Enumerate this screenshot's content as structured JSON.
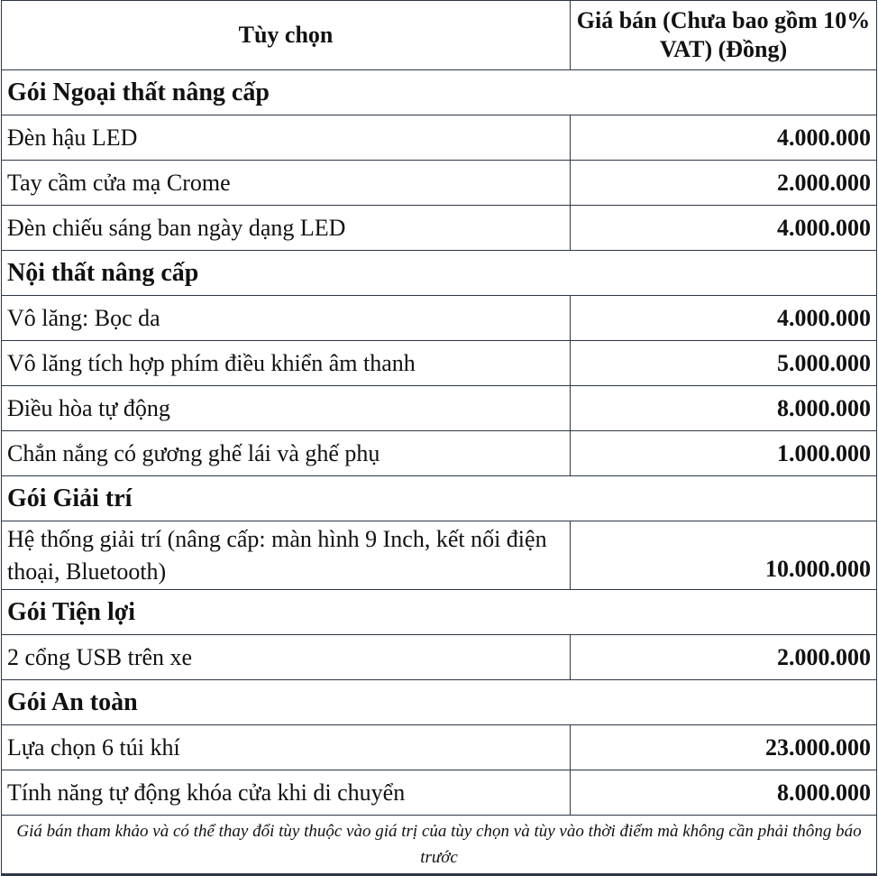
{
  "header": {
    "option": "Tùy chọn",
    "price": "Giá bán (Chưa bao gồm 10% VAT) (Đồng)"
  },
  "groups": [
    {
      "title": "Gói Ngoại thất nâng cấp",
      "items": [
        {
          "name": "Đèn hậu LED",
          "price": "4.000.000"
        },
        {
          "name": "Tay cầm cửa mạ Crome",
          "price": "2.000.000"
        },
        {
          "name": "Đèn chiếu sáng ban ngày dạng LED",
          "price": "4.000.000"
        }
      ]
    },
    {
      "title": "Nội thất nâng cấp",
      "items": [
        {
          "name": "Vô lăng: Bọc da",
          "price": "4.000.000"
        },
        {
          "name": "Vô lăng tích hợp phím điều khiển âm thanh",
          "price": "5.000.000"
        },
        {
          "name": "Điều hòa tự động",
          "price": "8.000.000"
        },
        {
          "name": "Chắn nắng có gương ghế lái và ghế phụ",
          "price": "1.000.000"
        }
      ]
    },
    {
      "title": "Gói Giải trí",
      "items": [
        {
          "name": "Hệ thống giải trí (nâng cấp: màn hình 9 Inch, kết nối điện thoại, Bluetooth)",
          "price": "10.000.000"
        }
      ]
    },
    {
      "title": "Gói Tiện lợi",
      "items": [
        {
          "name": "2 cổng USB trên xe",
          "price": "2.000.000"
        }
      ]
    },
    {
      "title": "Gói An toàn",
      "items": [
        {
          "name": "Lựa chọn 6 túi khí",
          "price": "23.000.000"
        },
        {
          "name": "Tính năng tự động khóa cửa khi di chuyển",
          "price": "8.000.000"
        }
      ]
    }
  ],
  "footer": "Giá bán tham khảo và có thể thay đổi tùy thuộc vào giá trị của tùy chọn và tùy vào thời điểm mà không cần phải thông báo trước"
}
